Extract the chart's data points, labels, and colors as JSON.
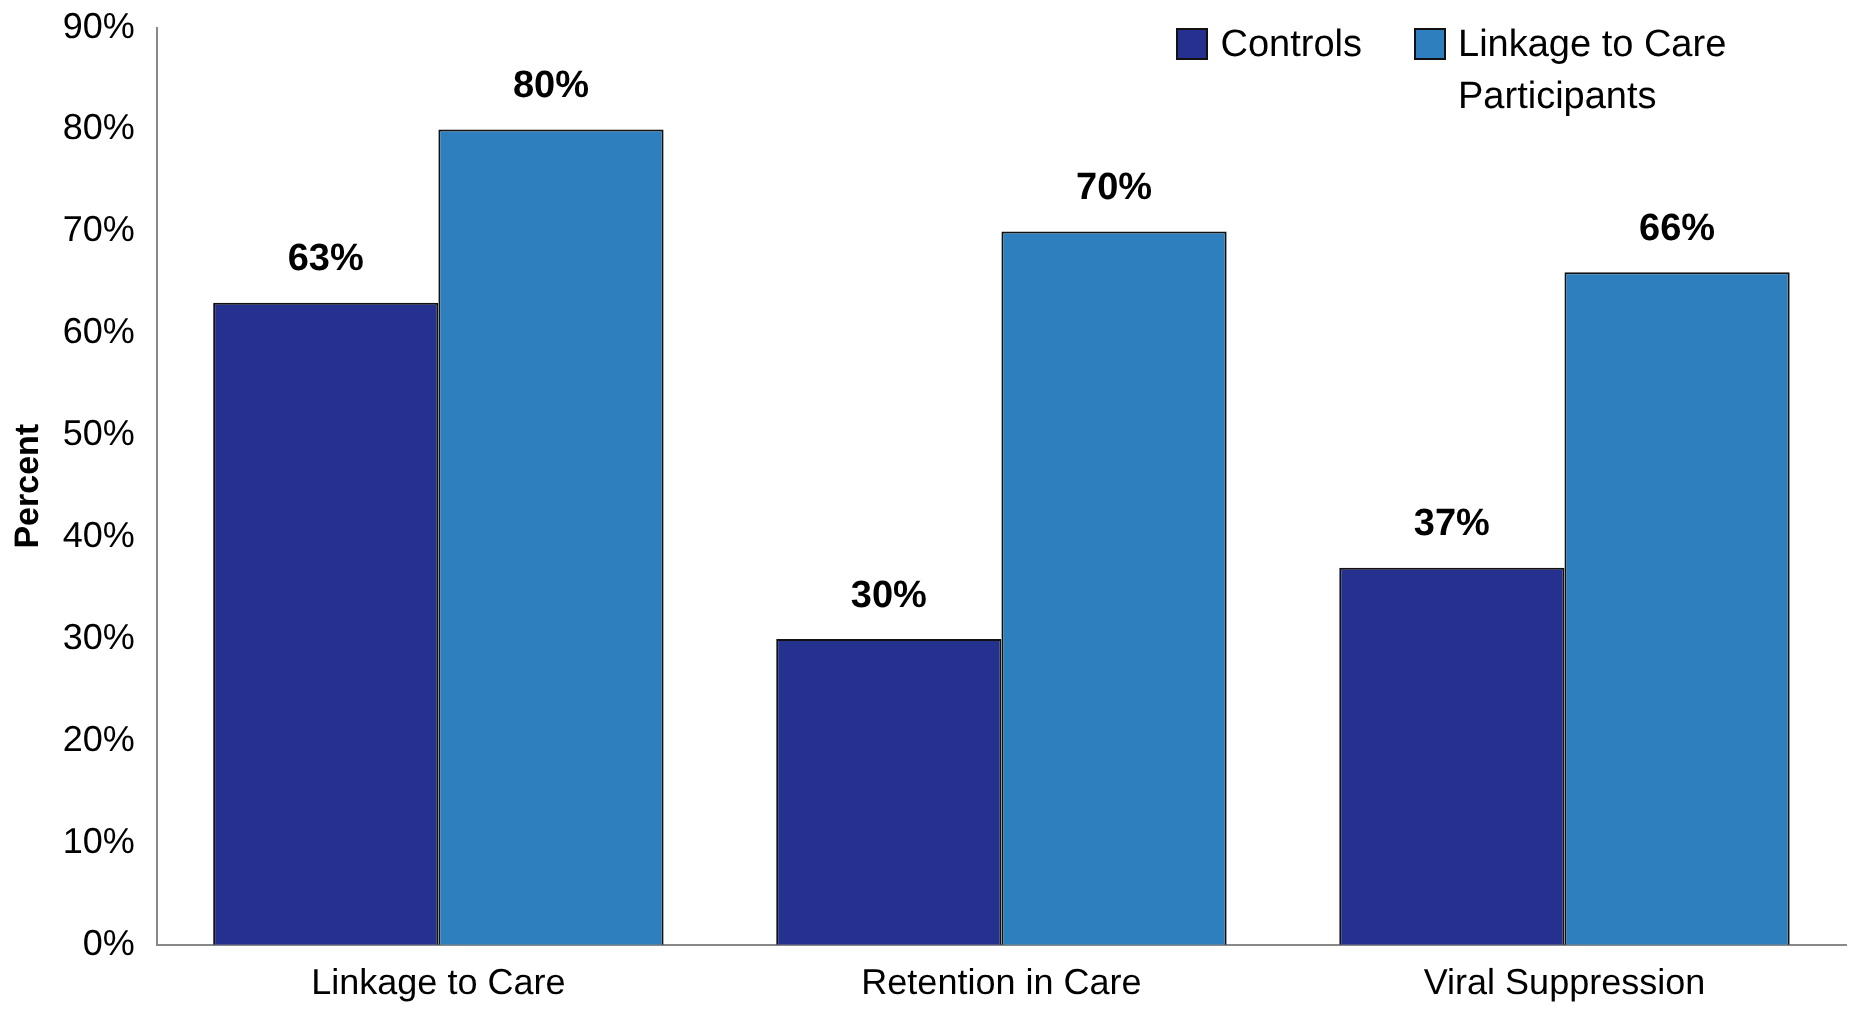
{
  "chart_data": {
    "type": "bar",
    "ylabel": "Percent",
    "categories": [
      "Linkage to Care",
      "Retention in Care",
      "Viral Suppression"
    ],
    "series": [
      {
        "name": "Controls",
        "color": "#25318f",
        "values": [
          63,
          30,
          37
        ],
        "value_labels": [
          "63%",
          "30%",
          "37%"
        ]
      },
      {
        "name": "Linkage to Care Participants",
        "color": "#2e7fbd",
        "values": [
          80,
          70,
          66
        ],
        "value_labels": [
          "80%",
          "70%",
          "66%"
        ]
      }
    ],
    "ylim": [
      0,
      90
    ],
    "yticks": [
      {
        "value": 0,
        "label": "0%"
      },
      {
        "value": 10,
        "label": "10%"
      },
      {
        "value": 20,
        "label": "20%"
      },
      {
        "value": 30,
        "label": "30%"
      },
      {
        "value": 40,
        "label": "40%"
      },
      {
        "value": 50,
        "label": "50%"
      },
      {
        "value": 60,
        "label": "60%"
      },
      {
        "value": 70,
        "label": "70%"
      },
      {
        "value": 80,
        "label": "80%"
      },
      {
        "value": 90,
        "label": "90%"
      }
    ],
    "grid": false,
    "legend": "top right"
  }
}
